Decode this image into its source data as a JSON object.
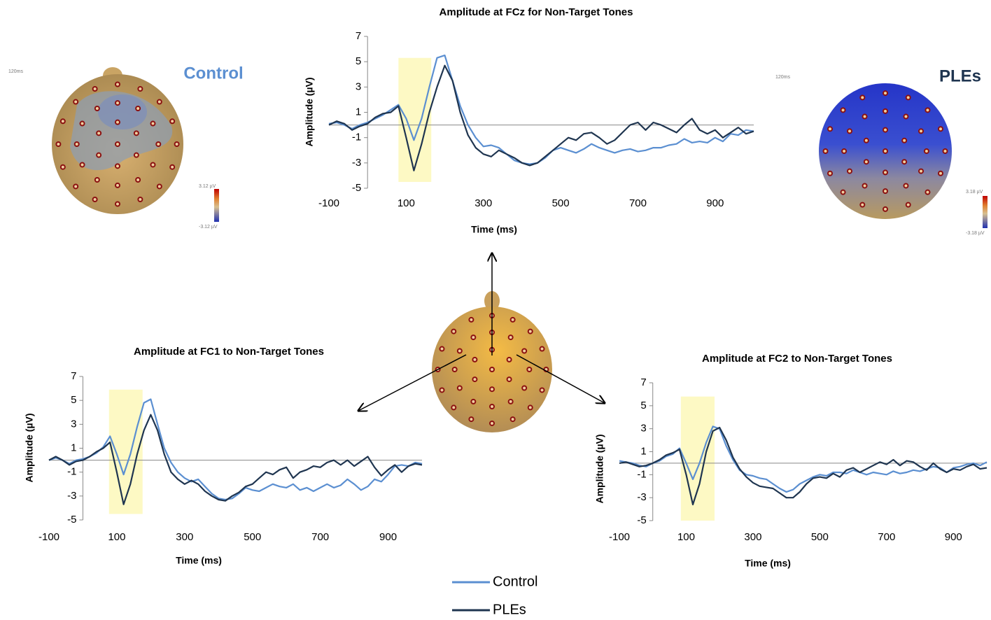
{
  "topomaps": [
    {
      "label": "Control",
      "time": "120ms",
      "scale_max": "3.12 µV",
      "scale_min": "-3.12 µV"
    },
    {
      "label": "PLEs",
      "time": "120ms",
      "scale_max": "3.18 µV",
      "scale_min": "-3.18 µV"
    }
  ],
  "chart_data": [
    {
      "type": "line",
      "title": "Amplitude at FCz for Non-Target Tones",
      "x_label": "Time (ms)",
      "y_label": "Amplitude (µV)",
      "x": [
        -100,
        -80,
        -60,
        -40,
        -20,
        0,
        20,
        40,
        60,
        80,
        100,
        120,
        140,
        160,
        180,
        200,
        220,
        240,
        260,
        280,
        300,
        320,
        340,
        360,
        380,
        400,
        420,
        440,
        460,
        480,
        500,
        520,
        540,
        560,
        580,
        600,
        620,
        640,
        660,
        680,
        700,
        720,
        740,
        760,
        780,
        800,
        820,
        840,
        860,
        880,
        900,
        920,
        940,
        960,
        980,
        1000
      ],
      "series": [
        {
          "name": "Control",
          "color": "#5b8fd1",
          "values": [
            0.1,
            0.2,
            0.0,
            -0.3,
            0.0,
            0.2,
            0.5,
            0.8,
            1.2,
            1.6,
            0.5,
            -1.2,
            0.5,
            3.0,
            5.3,
            5.5,
            3.5,
            1.5,
            0.0,
            -1.0,
            -1.7,
            -1.6,
            -1.8,
            -2.3,
            -2.8,
            -3.0,
            -3.1,
            -3.0,
            -2.6,
            -2.0,
            -1.8,
            -2.0,
            -2.2,
            -1.9,
            -1.5,
            -1.8,
            -2.0,
            -2.2,
            -2.0,
            -1.9,
            -2.1,
            -2.0,
            -1.8,
            -1.8,
            -1.6,
            -1.5,
            -1.1,
            -1.4,
            -1.3,
            -1.4,
            -1.0,
            -1.3,
            -0.7,
            -0.8,
            -0.4,
            -0.5
          ]
        },
        {
          "name": "PLEs",
          "color": "#1f3550",
          "values": [
            0.0,
            0.3,
            0.1,
            -0.4,
            -0.1,
            0.1,
            0.6,
            0.9,
            1.0,
            1.5,
            -1.0,
            -3.6,
            -1.5,
            1.0,
            3.0,
            4.7,
            3.5,
            1.0,
            -0.8,
            -1.8,
            -2.3,
            -2.5,
            -2.0,
            -2.3,
            -2.6,
            -3.0,
            -3.2,
            -3.0,
            -2.5,
            -2.0,
            -1.5,
            -1.0,
            -1.2,
            -0.7,
            -0.6,
            -1.0,
            -1.5,
            -1.2,
            -0.6,
            0.0,
            0.2,
            -0.4,
            0.2,
            0.0,
            -0.3,
            -0.6,
            0.0,
            0.5,
            -0.4,
            -0.7,
            -0.4,
            -1.0,
            -0.6,
            -0.2,
            -0.7,
            -0.5
          ]
        }
      ],
      "highlight": {
        "x": [
          80,
          165
        ],
        "y": [
          -4.5,
          5.3
        ],
        "color": "#fdf9c4"
      },
      "xlim": [
        -100,
        1000
      ],
      "xticks": [
        -100,
        100,
        300,
        500,
        700,
        900
      ],
      "ylim": [
        -5,
        7
      ],
      "yticks": [
        -5,
        -3,
        -1,
        1,
        3,
        5,
        7
      ]
    },
    {
      "type": "line",
      "title": "Amplitude at FC1 to Non-Target Tones",
      "x_label": "Time (ms)",
      "y_label": "Amplitude (µV)",
      "x": [
        -100,
        -80,
        -60,
        -40,
        -20,
        0,
        20,
        40,
        60,
        80,
        100,
        120,
        140,
        160,
        180,
        200,
        220,
        240,
        260,
        280,
        300,
        320,
        340,
        360,
        380,
        400,
        420,
        440,
        460,
        480,
        500,
        520,
        540,
        560,
        580,
        600,
        620,
        640,
        660,
        680,
        700,
        720,
        740,
        760,
        780,
        800,
        820,
        840,
        860,
        880,
        900,
        920,
        940,
        960,
        980,
        1000
      ],
      "series": [
        {
          "name": "Control",
          "color": "#5b8fd1",
          "values": [
            0.0,
            0.2,
            0.0,
            -0.3,
            0.0,
            0.1,
            0.3,
            0.6,
            1.1,
            2.0,
            0.5,
            -1.2,
            0.5,
            2.8,
            4.8,
            5.1,
            3.0,
            1.0,
            -0.2,
            -1.0,
            -1.5,
            -1.8,
            -1.6,
            -2.2,
            -2.8,
            -3.2,
            -3.3,
            -3.2,
            -2.8,
            -2.3,
            -2.5,
            -2.6,
            -2.3,
            -2.0,
            -2.2,
            -2.3,
            -2.0,
            -2.5,
            -2.3,
            -2.6,
            -2.3,
            -2.0,
            -2.3,
            -2.1,
            -1.6,
            -2.0,
            -2.5,
            -2.2,
            -1.6,
            -1.8,
            -1.2,
            -0.5,
            -0.4,
            -0.5,
            -0.2,
            -0.3
          ]
        },
        {
          "name": "PLEs",
          "color": "#1f3550",
          "values": [
            0.0,
            0.3,
            0.0,
            -0.4,
            -0.1,
            0.0,
            0.3,
            0.7,
            1.0,
            1.5,
            -1.0,
            -3.7,
            -2.0,
            0.5,
            2.5,
            3.8,
            2.5,
            0.5,
            -1.0,
            -1.6,
            -2.0,
            -1.7,
            -2.0,
            -2.6,
            -3.0,
            -3.3,
            -3.4,
            -3.0,
            -2.7,
            -2.2,
            -2.0,
            -1.5,
            -1.0,
            -1.2,
            -0.8,
            -0.6,
            -1.5,
            -1.0,
            -0.8,
            -0.5,
            -0.6,
            -0.2,
            0.0,
            -0.4,
            0.0,
            -0.5,
            -0.1,
            0.3,
            -0.6,
            -1.3,
            -0.8,
            -0.4,
            -1.0,
            -0.5,
            -0.3,
            -0.4
          ]
        }
      ],
      "highlight": {
        "x": [
          77,
          176
        ],
        "y": [
          -4.5,
          5.9
        ],
        "color": "#fdf9c4"
      },
      "xlim": [
        -100,
        1000
      ],
      "xticks": [
        -100,
        100,
        300,
        500,
        700,
        900
      ],
      "ylim": [
        -5,
        7
      ],
      "yticks": [
        -5,
        -3,
        -1,
        1,
        3,
        5,
        7
      ]
    },
    {
      "type": "line",
      "title": "Amplitude at FC2 to Non-Target Tones",
      "x_label": "Time (ms)",
      "y_label": "Amplitude (µV)",
      "x": [
        -100,
        -80,
        -60,
        -40,
        -20,
        0,
        20,
        40,
        60,
        80,
        100,
        120,
        140,
        160,
        180,
        200,
        220,
        240,
        260,
        280,
        300,
        320,
        340,
        360,
        380,
        400,
        420,
        440,
        460,
        480,
        500,
        520,
        540,
        560,
        580,
        600,
        620,
        640,
        660,
        680,
        700,
        720,
        740,
        760,
        780,
        800,
        820,
        840,
        860,
        880,
        900,
        920,
        940,
        960,
        980,
        1000
      ],
      "series": [
        {
          "name": "Control",
          "color": "#5b8fd1",
          "values": [
            0.2,
            0.1,
            0.0,
            -0.2,
            -0.3,
            0.0,
            0.2,
            0.6,
            0.8,
            1.3,
            0.0,
            -1.4,
            0.0,
            1.8,
            3.2,
            3.0,
            1.5,
            0.3,
            -0.6,
            -1.0,
            -1.1,
            -1.3,
            -1.4,
            -1.8,
            -2.2,
            -2.5,
            -2.3,
            -1.8,
            -1.5,
            -1.2,
            -1.0,
            -1.1,
            -0.8,
            -0.8,
            -0.9,
            -0.6,
            -0.8,
            -1.0,
            -0.8,
            -0.9,
            -1.0,
            -0.7,
            -0.9,
            -0.8,
            -0.6,
            -0.7,
            -0.5,
            -0.3,
            -0.4,
            -0.8,
            -0.4,
            -0.3,
            -0.1,
            0.0,
            -0.2,
            0.1
          ]
        },
        {
          "name": "PLEs",
          "color": "#1f3550",
          "values": [
            0.0,
            0.1,
            -0.1,
            -0.3,
            -0.2,
            0.0,
            0.3,
            0.7,
            0.9,
            1.2,
            -1.0,
            -3.6,
            -1.8,
            1.0,
            2.8,
            3.1,
            2.0,
            0.5,
            -0.5,
            -1.2,
            -1.7,
            -2.0,
            -2.1,
            -2.2,
            -2.6,
            -3.0,
            -3.0,
            -2.5,
            -1.8,
            -1.3,
            -1.2,
            -1.3,
            -0.9,
            -1.2,
            -0.6,
            -0.4,
            -0.8,
            -0.5,
            -0.2,
            0.1,
            -0.1,
            0.3,
            -0.2,
            0.2,
            0.1,
            -0.3,
            -0.6,
            0.0,
            -0.5,
            -0.8,
            -0.5,
            -0.6,
            -0.3,
            -0.1,
            -0.5,
            -0.4
          ]
        }
      ],
      "highlight": {
        "x": [
          84,
          185
        ],
        "y": [
          -5,
          5.8
        ],
        "color": "#fdf9c4"
      },
      "xlim": [
        -100,
        1000
      ],
      "xticks": [
        -100,
        100,
        300,
        500,
        700,
        900
      ],
      "ylim": [
        -5,
        7
      ],
      "yticks": [
        -5,
        -3,
        -1,
        1,
        3,
        5,
        7
      ]
    }
  ]
}
